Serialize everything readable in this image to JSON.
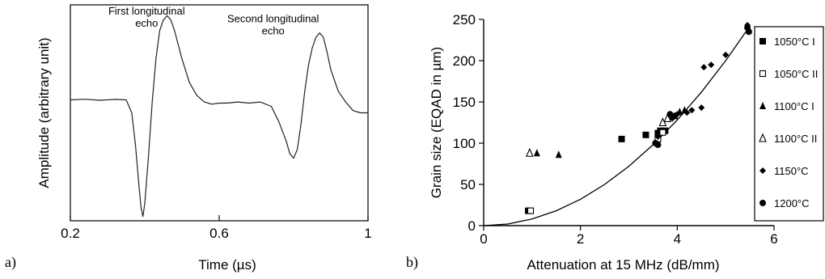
{
  "panels": {
    "a": "a)",
    "b": "b)"
  },
  "chart_data": [
    {
      "type": "line",
      "xlabel": "Time (µs)",
      "ylabel": "Amplitude (arbitrary unit)",
      "xlim": [
        0.2,
        1.0
      ],
      "ylim": [
        0,
        1
      ],
      "xticks": [
        0.2,
        0.6,
        1.0
      ],
      "xtick_labels": [
        "0.2",
        "0.6",
        "1"
      ],
      "grid": false,
      "annotations": [
        {
          "text": [
            "First longitudinal",
            "echo"
          ],
          "x": 0.405,
          "y": 0.955
        },
        {
          "text": [
            "Second longitudinal",
            "echo"
          ],
          "x": 0.745,
          "y": 0.92
        }
      ],
      "x": [
        0.2,
        0.24,
        0.28,
        0.32,
        0.35,
        0.365,
        0.375,
        0.385,
        0.39,
        0.395,
        0.4,
        0.41,
        0.42,
        0.43,
        0.44,
        0.45,
        0.46,
        0.47,
        0.48,
        0.5,
        0.52,
        0.54,
        0.56,
        0.58,
        0.6,
        0.62,
        0.65,
        0.68,
        0.71,
        0.74,
        0.76,
        0.78,
        0.79,
        0.8,
        0.81,
        0.82,
        0.83,
        0.84,
        0.85,
        0.86,
        0.87,
        0.88,
        0.89,
        0.9,
        0.92,
        0.94,
        0.96,
        0.98,
        1.0
      ],
      "y": [
        0.56,
        0.563,
        0.558,
        0.562,
        0.56,
        0.5,
        0.35,
        0.15,
        0.06,
        0.02,
        0.08,
        0.3,
        0.55,
        0.75,
        0.88,
        0.93,
        0.95,
        0.93,
        0.88,
        0.75,
        0.64,
        0.58,
        0.55,
        0.54,
        0.545,
        0.545,
        0.55,
        0.545,
        0.55,
        0.53,
        0.46,
        0.37,
        0.31,
        0.29,
        0.33,
        0.45,
        0.6,
        0.72,
        0.8,
        0.85,
        0.87,
        0.85,
        0.78,
        0.7,
        0.6,
        0.55,
        0.51,
        0.5,
        0.5
      ]
    },
    {
      "type": "scatter",
      "xlabel": "Attenuation at 15 MHz (dB/mm)",
      "ylabel": "Grain size (EQAD in µm)",
      "xlim": [
        0,
        6
      ],
      "ylim": [
        0,
        250
      ],
      "xticks": [
        0,
        2,
        4,
        6
      ],
      "yticks": [
        0,
        50,
        100,
        150,
        200,
        250
      ],
      "grid": false,
      "legend_position": "right",
      "series": [
        {
          "name": "1050°C I",
          "marker": "square-filled",
          "points": [
            [
              0.92,
              18
            ],
            [
              2.85,
              105
            ],
            [
              3.35,
              110
            ],
            [
              3.6,
              112
            ],
            [
              3.65,
              115
            ],
            [
              3.75,
              115
            ]
          ]
        },
        {
          "name": "1050°C II",
          "marker": "square-open",
          "points": [
            [
              0.97,
              18
            ],
            [
              3.6,
              105
            ],
            [
              3.7,
              113
            ]
          ]
        },
        {
          "name": "1100°C I",
          "marker": "triangle-filled",
          "points": [
            [
              1.1,
              88
            ],
            [
              1.55,
              86
            ],
            [
              3.95,
              133
            ],
            [
              4.05,
              138
            ],
            [
              4.15,
              140
            ]
          ]
        },
        {
          "name": "1100°C II",
          "marker": "triangle-open",
          "points": [
            [
              0.95,
              88
            ],
            [
              3.7,
              125
            ],
            [
              3.8,
              130
            ]
          ]
        },
        {
          "name": "1150°C",
          "marker": "diamond-filled",
          "points": [
            [
              3.6,
              108
            ],
            [
              3.9,
              130
            ],
            [
              4.0,
              135
            ],
            [
              4.2,
              137
            ],
            [
              4.3,
              140
            ],
            [
              4.5,
              143
            ],
            [
              4.55,
              192
            ],
            [
              4.7,
              195
            ],
            [
              5.0,
              207
            ],
            [
              5.45,
              243
            ]
          ]
        },
        {
          "name": "1200°C",
          "marker": "circle-filled",
          "points": [
            [
              3.55,
              100
            ],
            [
              3.6,
              98
            ],
            [
              3.85,
              135
            ],
            [
              3.95,
              133
            ],
            [
              5.45,
              240
            ],
            [
              5.48,
              235
            ]
          ]
        }
      ],
      "fit_curve": {
        "x": [
          0,
          0.5,
          1,
          1.5,
          2,
          2.5,
          3,
          3.5,
          4,
          4.5,
          5,
          5.5
        ],
        "y": [
          0,
          2,
          8,
          18,
          32,
          50,
          72,
          98,
          128,
          162,
          200,
          242
        ]
      }
    }
  ]
}
